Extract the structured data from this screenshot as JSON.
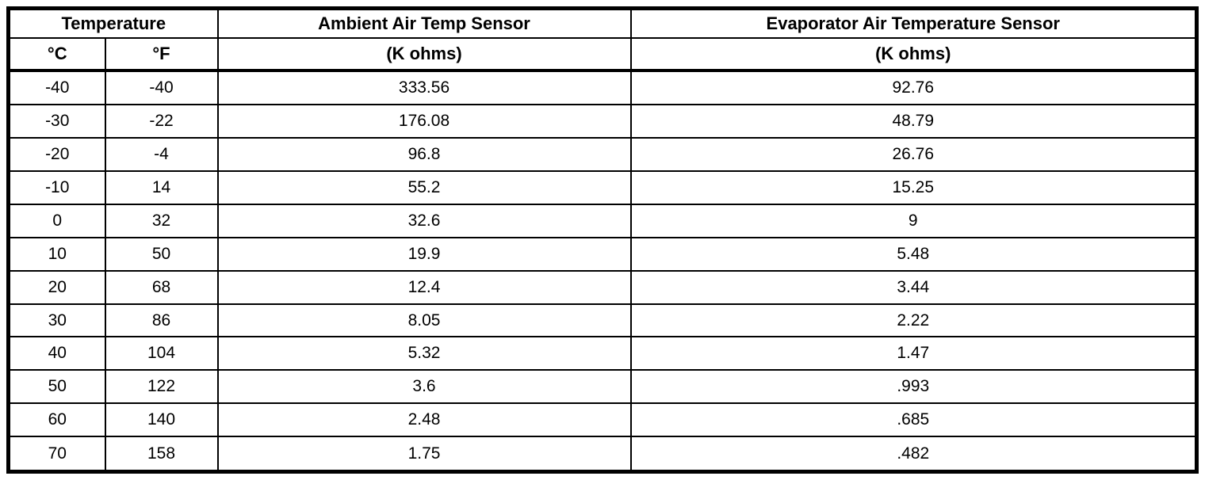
{
  "table": {
    "header": {
      "temperature_group": "Temperature",
      "ambient_sensor": "Ambient Air Temp Sensor",
      "evaporator_sensor": "Evaporator Air Temperature Sensor",
      "celsius": "°C",
      "fahrenheit": "°F",
      "ambient_unit": "(K ohms)",
      "evaporator_unit": "(K ohms)"
    },
    "row_keys": [
      "c",
      "f",
      "ambient",
      "evaporator"
    ],
    "rows": [
      {
        "c": "-40",
        "f": "-40",
        "ambient": "333.56",
        "evaporator": "92.76"
      },
      {
        "c": "-30",
        "f": "-22",
        "ambient": "176.08",
        "evaporator": "48.79"
      },
      {
        "c": "-20",
        "f": "-4",
        "ambient": "96.8",
        "evaporator": "26.76"
      },
      {
        "c": "-10",
        "f": "14",
        "ambient": "55.2",
        "evaporator": "15.25"
      },
      {
        "c": "0",
        "f": "32",
        "ambient": "32.6",
        "evaporator": "9"
      },
      {
        "c": "10",
        "f": "50",
        "ambient": "19.9",
        "evaporator": "5.48"
      },
      {
        "c": "20",
        "f": "68",
        "ambient": "12.4",
        "evaporator": "3.44"
      },
      {
        "c": "30",
        "f": "86",
        "ambient": "8.05",
        "evaporator": "2.22"
      },
      {
        "c": "40",
        "f": "104",
        "ambient": "5.32",
        "evaporator": "1.47"
      },
      {
        "c": "50",
        "f": "122",
        "ambient": "3.6",
        "evaporator": ".993"
      },
      {
        "c": "60",
        "f": "140",
        "ambient": "2.48",
        "evaporator": ".685"
      },
      {
        "c": "70",
        "f": "158",
        "ambient": "1.75",
        "evaporator": ".482"
      }
    ]
  },
  "colors": {
    "border": "#000000",
    "background": "#ffffff",
    "text": "#000000"
  }
}
